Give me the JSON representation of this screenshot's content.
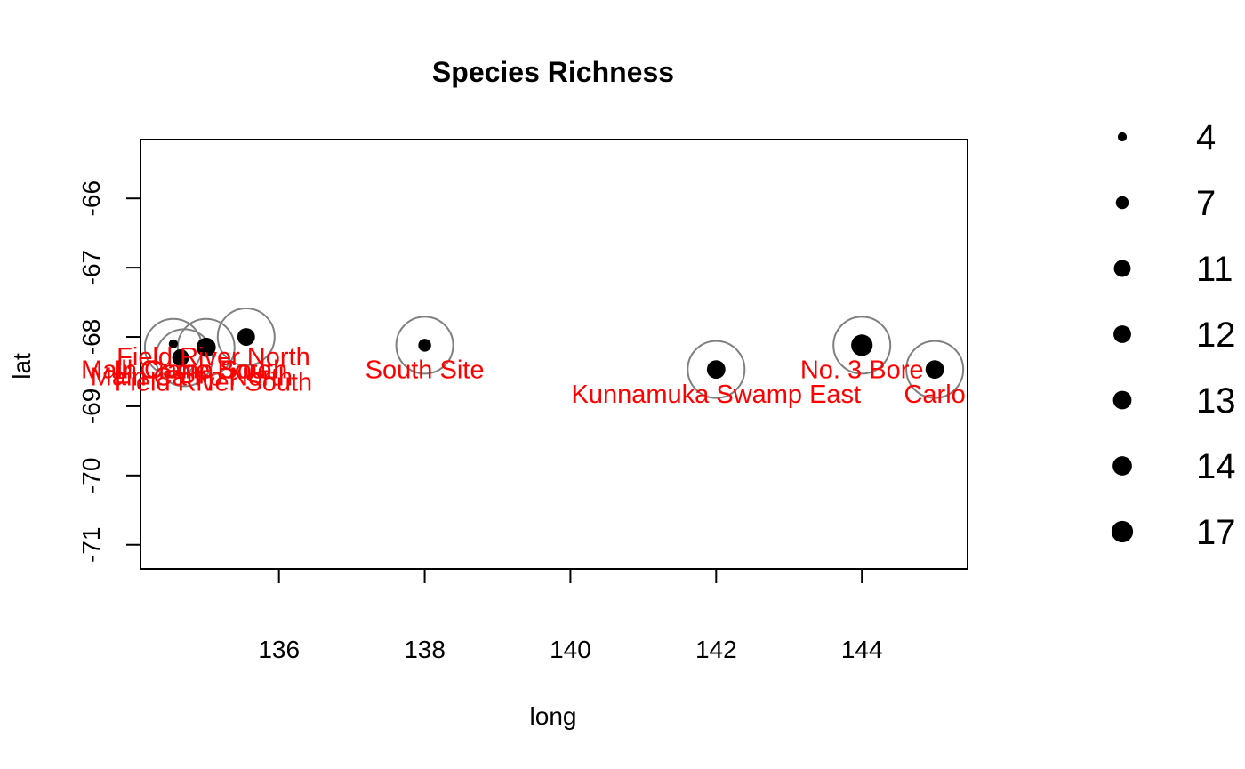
{
  "colors": {
    "label": "#ff0000",
    "point": "#000000",
    "ring": "#808080"
  },
  "chart_data": {
    "type": "scatter",
    "title": "Species Richness",
    "xlabel": "long",
    "ylabel": "lat",
    "xlim": [
      134.1,
      145.45
    ],
    "ylim": [
      -71.35,
      -65.15
    ],
    "xticks": [
      136,
      138,
      140,
      142,
      144
    ],
    "yticks": [
      -66,
      -67,
      -68,
      -69,
      -70,
      -71
    ],
    "legend_position": "right",
    "legend": [
      {
        "label": "4",
        "value": 4
      },
      {
        "label": "7",
        "value": 7
      },
      {
        "label": "11",
        "value": 11
      },
      {
        "label": "12",
        "value": 12
      },
      {
        "label": "13",
        "value": 13
      },
      {
        "label": "14",
        "value": 14
      },
      {
        "label": "17",
        "value": 17
      }
    ],
    "rings": [
      {
        "x": 134.55,
        "y": -68.15
      },
      {
        "x": 134.7,
        "y": -68.3
      },
      {
        "x": 135.0,
        "y": -68.15
      },
      {
        "x": 135.55,
        "y": -68.0
      },
      {
        "x": 138.0,
        "y": -68.12
      },
      {
        "x": 142.0,
        "y": -68.47
      },
      {
        "x": 144.0,
        "y": -68.12
      },
      {
        "x": 145.0,
        "y": -68.47
      }
    ],
    "points": [
      {
        "x": 134.55,
        "y": -68.1,
        "richness": 4
      },
      {
        "x": 134.65,
        "y": -68.3,
        "richness": 11
      },
      {
        "x": 135.0,
        "y": -68.15,
        "richness": 14
      },
      {
        "x": 135.55,
        "y": -68.0,
        "richness": 12
      },
      {
        "x": 138.0,
        "y": -68.12,
        "richness": 7
      },
      {
        "x": 142.0,
        "y": -68.47,
        "richness": 13
      },
      {
        "x": 144.0,
        "y": -68.12,
        "richness": 17
      },
      {
        "x": 145.0,
        "y": -68.47,
        "richness": 13
      }
    ],
    "labels": [
      {
        "text": "Field River North",
        "x": 135.1,
        "y": -68.28
      },
      {
        "text": "Main Camp South",
        "x": 134.7,
        "y": -68.47
      },
      {
        "text": "Ill Crane Bore",
        "x": 134.82,
        "y": -68.47
      },
      {
        "text": "Main Camp North",
        "x": 134.8,
        "y": -68.57
      },
      {
        "text": "Field River South",
        "x": 135.1,
        "y": -68.65
      },
      {
        "text": "South Site",
        "x": 138.0,
        "y": -68.47
      },
      {
        "text": "No. 3 Bore",
        "x": 144.0,
        "y": -68.47
      },
      {
        "text": "Kunnamuka Swamp East",
        "x": 142.0,
        "y": -68.82
      },
      {
        "text": "Carlo",
        "x": 145.0,
        "y": -68.82
      }
    ]
  }
}
